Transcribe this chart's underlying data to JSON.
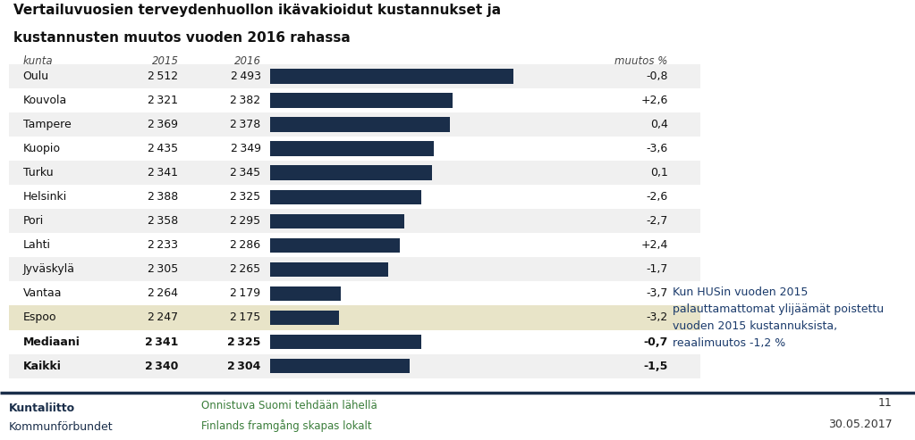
{
  "title_line1": "Vertailuvuosien terveydenhuollon ikävakioidut kustannukset ja",
  "title_line2": "kustannusten muutos vuoden 2016 rahassa",
  "col_headers": [
    "kunta",
    "2015",
    "2016",
    "muutos %"
  ],
  "cities": [
    "Oulu",
    "Kouvola",
    "Tampere",
    "Kuopio",
    "Turku",
    "Helsinki",
    "Pori",
    "Lahti",
    "Jyväskylä",
    "Vantaa",
    "Espoo",
    "Mediaani",
    "Kaikki"
  ],
  "val_2015": [
    2512,
    2321,
    2369,
    2435,
    2341,
    2388,
    2358,
    2233,
    2305,
    2264,
    2247,
    2341,
    2340
  ],
  "val_2016": [
    2493,
    2382,
    2378,
    2349,
    2345,
    2325,
    2295,
    2286,
    2265,
    2179,
    2175,
    2325,
    2304
  ],
  "changes": [
    "-0,8",
    "+2,6",
    "0,4",
    "-3,6",
    "0,1",
    "-2,6",
    "-2,7",
    "+2,4",
    "-1,7",
    "-3,7",
    "-3,2",
    "-0,7",
    "-1,5"
  ],
  "bold_rows": [
    11,
    12
  ],
  "espoo_row": 10,
  "bar_color": "#1a2e4a",
  "espoo_bg": "#e8e4c8",
  "row_bg_light": "#f0f0f0",
  "row_bg_white": "#ffffff",
  "annotation_text": "Kun HUSin vuoden 2015\npalauttamattomat ylijäämät poistettu\nvuoden 2015 kustannuksista,\nreaalimuutos -1,2 %",
  "annotation_color": "#1a3a6b",
  "footer_left1": "Kuntaliitto",
  "footer_left2": "Kommunförbundet",
  "footer_mid1": "Onnistuva Suomi tehdään lähellä",
  "footer_mid2": "Finlands framgång skapas lokalt",
  "footer_right1": "11",
  "footer_right2": "30.05.2017",
  "bg_color": "#ffffff",
  "bar_max_value": 2600,
  "bar_min_value": 2050
}
